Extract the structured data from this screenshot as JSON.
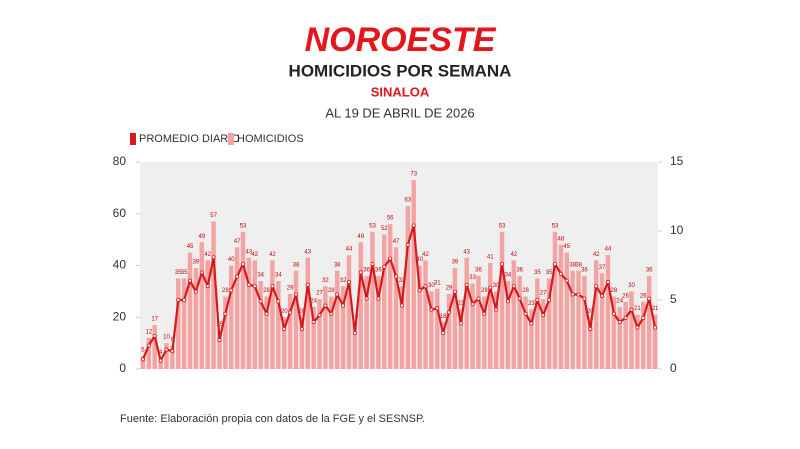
{
  "chart_data": {
    "type": "bar_line",
    "brand": "NOROESTE",
    "title": "HOMICIDIOS POR SEMANA",
    "subtitle": "SINALOA",
    "date_note": "AL 19 DE ABRIL DE 2026",
    "source": "Fuente: Elaboración propia con datos de la FGE y el SESNSP.",
    "ylim": [
      0,
      80
    ],
    "yticks": [
      0,
      20,
      40,
      60,
      80
    ],
    "y2lim": [
      0,
      15
    ],
    "y2ticks": [
      0,
      5,
      10,
      15
    ],
    "grid": false,
    "series": [
      {
        "name": "HOMICIDIOS",
        "color": "#f4a3a3",
        "values": [
          5,
          12,
          17,
          4,
          10,
          9,
          35,
          35,
          45,
          39,
          49,
          42,
          57,
          15,
          28,
          40,
          47,
          53,
          43,
          42,
          34,
          28,
          42,
          34,
          20,
          29,
          38,
          20,
          43,
          24,
          27,
          32,
          28,
          38,
          32,
          44,
          18,
          49,
          36,
          53,
          36,
          52,
          56,
          47,
          32,
          63,
          73,
          40,
          42,
          30,
          31,
          18,
          29,
          39,
          23,
          43,
          33,
          36,
          28,
          41,
          30,
          53,
          34,
          42,
          36,
          28,
          23,
          35,
          27,
          35,
          53,
          48,
          45,
          38,
          38,
          36,
          20,
          42,
          37,
          44,
          28,
          24,
          26,
          30,
          21,
          26,
          36,
          21
        ]
      },
      {
        "name": "PROMEDIO DIARIO",
        "color": "#d7191c",
        "axis": "y2",
        "values": [
          0.7,
          1.7,
          2.4,
          0.6,
          1.4,
          1.3,
          5.0,
          5.0,
          6.4,
          5.6,
          7.0,
          6.0,
          8.1,
          2.1,
          4.0,
          5.7,
          6.7,
          7.6,
          6.1,
          6.0,
          4.9,
          4.0,
          6.0,
          4.9,
          2.9,
          4.1,
          5.4,
          2.9,
          6.1,
          3.4,
          3.9,
          4.6,
          4.0,
          5.4,
          4.6,
          6.3,
          2.6,
          7.0,
          5.1,
          7.6,
          5.1,
          7.4,
          8.0,
          6.7,
          4.6,
          9.0,
          10.4,
          5.7,
          6.0,
          4.3,
          4.4,
          2.6,
          4.1,
          5.6,
          3.3,
          6.1,
          4.7,
          5.1,
          4.0,
          5.9,
          4.3,
          7.6,
          4.9,
          6.0,
          5.1,
          4.0,
          3.3,
          5.0,
          3.9,
          5.0,
          7.6,
          6.9,
          6.4,
          5.4,
          5.4,
          5.1,
          2.9,
          6.0,
          5.3,
          6.3,
          4.0,
          3.4,
          3.7,
          4.3,
          3.0,
          3.7,
          5.1,
          3.0
        ]
      }
    ]
  }
}
